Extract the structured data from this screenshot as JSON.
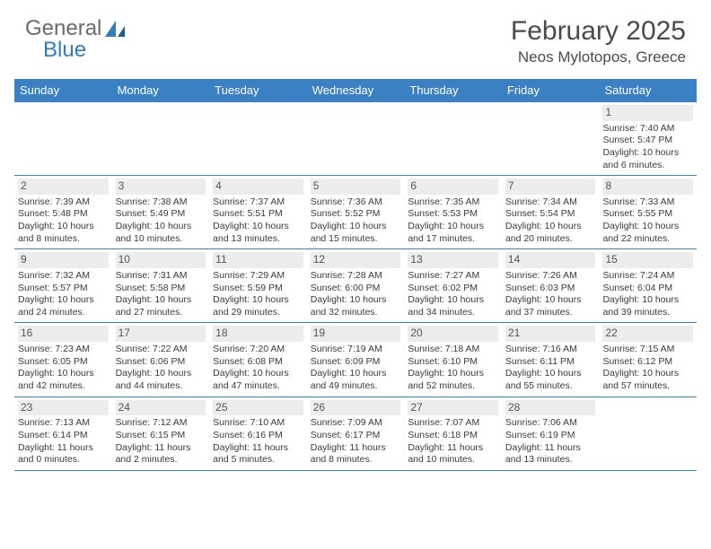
{
  "brand": {
    "part1": "General",
    "part2": "Blue"
  },
  "title": "February 2025",
  "location": "Neos Mylotopos, Greece",
  "colors": {
    "header_bar": "#3a80c3",
    "border": "#3a80c3",
    "daynum_bg": "#ececec",
    "text": "#3a3a3a",
    "brand_gray": "#6a6a6a",
    "brand_blue": "#2f7dc0"
  },
  "daysOfWeek": [
    "Sunday",
    "Monday",
    "Tuesday",
    "Wednesday",
    "Thursday",
    "Friday",
    "Saturday"
  ],
  "weeks": [
    [
      {
        "empty": true
      },
      {
        "empty": true
      },
      {
        "empty": true
      },
      {
        "empty": true
      },
      {
        "empty": true
      },
      {
        "empty": true
      },
      {
        "n": "1",
        "sunrise": "Sunrise: 7:40 AM",
        "sunset": "Sunset: 5:47 PM",
        "daylight1": "Daylight: 10 hours",
        "daylight2": "and 6 minutes."
      }
    ],
    [
      {
        "n": "2",
        "sunrise": "Sunrise: 7:39 AM",
        "sunset": "Sunset: 5:48 PM",
        "daylight1": "Daylight: 10 hours",
        "daylight2": "and 8 minutes."
      },
      {
        "n": "3",
        "sunrise": "Sunrise: 7:38 AM",
        "sunset": "Sunset: 5:49 PM",
        "daylight1": "Daylight: 10 hours",
        "daylight2": "and 10 minutes."
      },
      {
        "n": "4",
        "sunrise": "Sunrise: 7:37 AM",
        "sunset": "Sunset: 5:51 PM",
        "daylight1": "Daylight: 10 hours",
        "daylight2": "and 13 minutes."
      },
      {
        "n": "5",
        "sunrise": "Sunrise: 7:36 AM",
        "sunset": "Sunset: 5:52 PM",
        "daylight1": "Daylight: 10 hours",
        "daylight2": "and 15 minutes."
      },
      {
        "n": "6",
        "sunrise": "Sunrise: 7:35 AM",
        "sunset": "Sunset: 5:53 PM",
        "daylight1": "Daylight: 10 hours",
        "daylight2": "and 17 minutes."
      },
      {
        "n": "7",
        "sunrise": "Sunrise: 7:34 AM",
        "sunset": "Sunset: 5:54 PM",
        "daylight1": "Daylight: 10 hours",
        "daylight2": "and 20 minutes."
      },
      {
        "n": "8",
        "sunrise": "Sunrise: 7:33 AM",
        "sunset": "Sunset: 5:55 PM",
        "daylight1": "Daylight: 10 hours",
        "daylight2": "and 22 minutes."
      }
    ],
    [
      {
        "n": "9",
        "sunrise": "Sunrise: 7:32 AM",
        "sunset": "Sunset: 5:57 PM",
        "daylight1": "Daylight: 10 hours",
        "daylight2": "and 24 minutes."
      },
      {
        "n": "10",
        "sunrise": "Sunrise: 7:31 AM",
        "sunset": "Sunset: 5:58 PM",
        "daylight1": "Daylight: 10 hours",
        "daylight2": "and 27 minutes."
      },
      {
        "n": "11",
        "sunrise": "Sunrise: 7:29 AM",
        "sunset": "Sunset: 5:59 PM",
        "daylight1": "Daylight: 10 hours",
        "daylight2": "and 29 minutes."
      },
      {
        "n": "12",
        "sunrise": "Sunrise: 7:28 AM",
        "sunset": "Sunset: 6:00 PM",
        "daylight1": "Daylight: 10 hours",
        "daylight2": "and 32 minutes."
      },
      {
        "n": "13",
        "sunrise": "Sunrise: 7:27 AM",
        "sunset": "Sunset: 6:02 PM",
        "daylight1": "Daylight: 10 hours",
        "daylight2": "and 34 minutes."
      },
      {
        "n": "14",
        "sunrise": "Sunrise: 7:26 AM",
        "sunset": "Sunset: 6:03 PM",
        "daylight1": "Daylight: 10 hours",
        "daylight2": "and 37 minutes."
      },
      {
        "n": "15",
        "sunrise": "Sunrise: 7:24 AM",
        "sunset": "Sunset: 6:04 PM",
        "daylight1": "Daylight: 10 hours",
        "daylight2": "and 39 minutes."
      }
    ],
    [
      {
        "n": "16",
        "sunrise": "Sunrise: 7:23 AM",
        "sunset": "Sunset: 6:05 PM",
        "daylight1": "Daylight: 10 hours",
        "daylight2": "and 42 minutes."
      },
      {
        "n": "17",
        "sunrise": "Sunrise: 7:22 AM",
        "sunset": "Sunset: 6:06 PM",
        "daylight1": "Daylight: 10 hours",
        "daylight2": "and 44 minutes."
      },
      {
        "n": "18",
        "sunrise": "Sunrise: 7:20 AM",
        "sunset": "Sunset: 6:08 PM",
        "daylight1": "Daylight: 10 hours",
        "daylight2": "and 47 minutes."
      },
      {
        "n": "19",
        "sunrise": "Sunrise: 7:19 AM",
        "sunset": "Sunset: 6:09 PM",
        "daylight1": "Daylight: 10 hours",
        "daylight2": "and 49 minutes."
      },
      {
        "n": "20",
        "sunrise": "Sunrise: 7:18 AM",
        "sunset": "Sunset: 6:10 PM",
        "daylight1": "Daylight: 10 hours",
        "daylight2": "and 52 minutes."
      },
      {
        "n": "21",
        "sunrise": "Sunrise: 7:16 AM",
        "sunset": "Sunset: 6:11 PM",
        "daylight1": "Daylight: 10 hours",
        "daylight2": "and 55 minutes."
      },
      {
        "n": "22",
        "sunrise": "Sunrise: 7:15 AM",
        "sunset": "Sunset: 6:12 PM",
        "daylight1": "Daylight: 10 hours",
        "daylight2": "and 57 minutes."
      }
    ],
    [
      {
        "n": "23",
        "sunrise": "Sunrise: 7:13 AM",
        "sunset": "Sunset: 6:14 PM",
        "daylight1": "Daylight: 11 hours",
        "daylight2": "and 0 minutes."
      },
      {
        "n": "24",
        "sunrise": "Sunrise: 7:12 AM",
        "sunset": "Sunset: 6:15 PM",
        "daylight1": "Daylight: 11 hours",
        "daylight2": "and 2 minutes."
      },
      {
        "n": "25",
        "sunrise": "Sunrise: 7:10 AM",
        "sunset": "Sunset: 6:16 PM",
        "daylight1": "Daylight: 11 hours",
        "daylight2": "and 5 minutes."
      },
      {
        "n": "26",
        "sunrise": "Sunrise: 7:09 AM",
        "sunset": "Sunset: 6:17 PM",
        "daylight1": "Daylight: 11 hours",
        "daylight2": "and 8 minutes."
      },
      {
        "n": "27",
        "sunrise": "Sunrise: 7:07 AM",
        "sunset": "Sunset: 6:18 PM",
        "daylight1": "Daylight: 11 hours",
        "daylight2": "and 10 minutes."
      },
      {
        "n": "28",
        "sunrise": "Sunrise: 7:06 AM",
        "sunset": "Sunset: 6:19 PM",
        "daylight1": "Daylight: 11 hours",
        "daylight2": "and 13 minutes."
      },
      {
        "empty": true
      }
    ]
  ]
}
